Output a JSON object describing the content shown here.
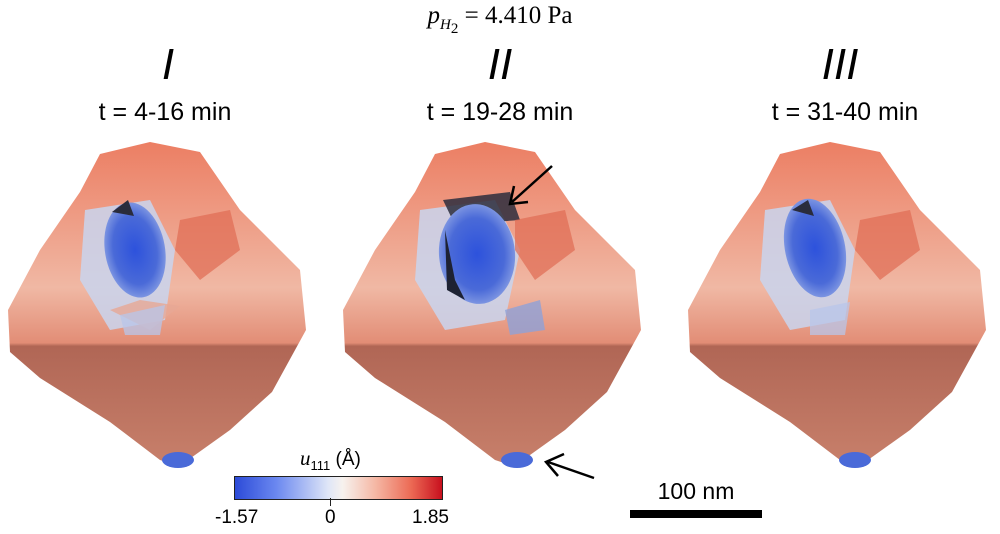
{
  "header": {
    "pressure_symbol": "p",
    "pressure_subscript": "H",
    "pressure_subsubscript": "2",
    "pressure_value": " = 4.410 Pa"
  },
  "panels": [
    {
      "numeral": "I",
      "time": "t = 4-16 min"
    },
    {
      "numeral": "II",
      "time": "t = 19-28 min"
    },
    {
      "numeral": "III",
      "time": "t = 31-40 min"
    }
  ],
  "colorbar": {
    "symbol": "u",
    "subscript": "111",
    "unit": " (Å)",
    "min_label": "-1.57",
    "mid_label": "0",
    "max_label": "1.85",
    "colors": {
      "min": "#2c4bd8",
      "mid": "#f7f2ee",
      "max": "#c8101e"
    }
  },
  "scale_bar": {
    "label": "100 nm"
  }
}
